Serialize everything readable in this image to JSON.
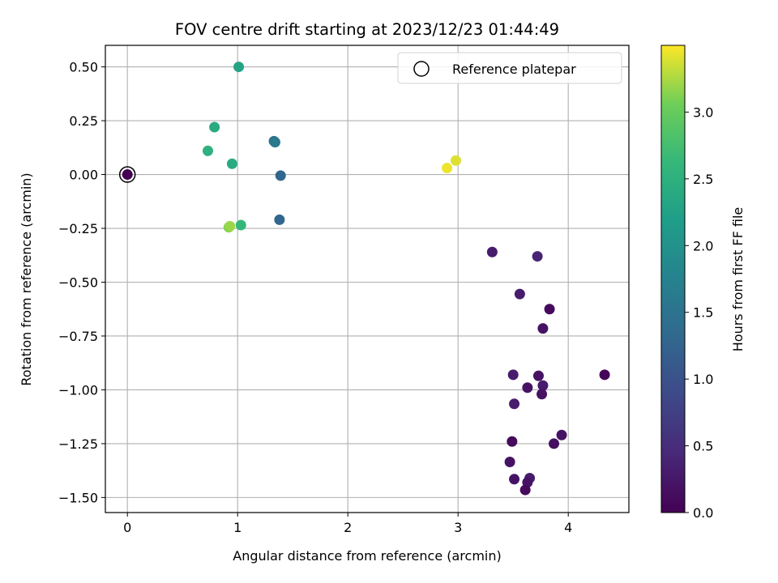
{
  "chart_data": {
    "type": "scatter",
    "title": "FOV centre drift starting at 2023/12/23 01:44:49",
    "xlabel": "Angular distance from reference (arcmin)",
    "ylabel": "Rotation from reference (arcmin)",
    "xlim": [
      -0.2,
      4.55
    ],
    "ylim": [
      -1.57,
      0.6
    ],
    "x_ticks": [
      0,
      1,
      2,
      3,
      4
    ],
    "x_tick_labels": [
      "0",
      "1",
      "2",
      "3",
      "4"
    ],
    "y_ticks": [
      0.5,
      0.25,
      0.0,
      -0.25,
      -0.5,
      -0.75,
      -1.0,
      -1.25,
      -1.5
    ],
    "y_tick_labels": [
      "0.50",
      "0.25",
      "0.00",
      "−0.25",
      "−0.50",
      "−0.75",
      "−1.00",
      "−1.25",
      "−1.50"
    ],
    "grid": true,
    "colormap": "viridis",
    "colorbar": {
      "label": "Hours from first FF file",
      "range": [
        0.0,
        3.5
      ],
      "ticks": [
        0.0,
        0.5,
        1.0,
        1.5,
        2.0,
        2.5,
        3.0
      ],
      "tick_labels": [
        "0.0",
        "0.5",
        "1.0",
        "1.5",
        "2.0",
        "2.5",
        "3.0"
      ]
    },
    "legend": {
      "position": "top-right",
      "entries": [
        "Reference platepar"
      ]
    },
    "reference_point": {
      "x": 0.0,
      "y": 0.0
    },
    "points": [
      {
        "x": 0.0,
        "y": 0.0,
        "c": 0.0
      },
      {
        "x": 3.31,
        "y": -0.36,
        "c": 0.3
      },
      {
        "x": 3.72,
        "y": -0.38,
        "c": 0.4
      },
      {
        "x": 3.56,
        "y": -0.555,
        "c": 0.3
      },
      {
        "x": 3.83,
        "y": -0.625,
        "c": 0.1
      },
      {
        "x": 3.77,
        "y": -0.715,
        "c": 0.2
      },
      {
        "x": 3.5,
        "y": -0.93,
        "c": 0.3
      },
      {
        "x": 3.73,
        "y": -0.935,
        "c": 0.2
      },
      {
        "x": 4.33,
        "y": -0.93,
        "c": 0.05
      },
      {
        "x": 3.63,
        "y": -0.99,
        "c": 0.2
      },
      {
        "x": 3.77,
        "y": -0.98,
        "c": 0.3
      },
      {
        "x": 3.76,
        "y": -1.02,
        "c": 0.2
      },
      {
        "x": 3.51,
        "y": -1.065,
        "c": 0.3
      },
      {
        "x": 3.94,
        "y": -1.21,
        "c": 0.2
      },
      {
        "x": 3.87,
        "y": -1.25,
        "c": 0.15
      },
      {
        "x": 3.49,
        "y": -1.24,
        "c": 0.1
      },
      {
        "x": 3.47,
        "y": -1.335,
        "c": 0.2
      },
      {
        "x": 3.51,
        "y": -1.415,
        "c": 0.2
      },
      {
        "x": 3.65,
        "y": -1.41,
        "c": 0.3
      },
      {
        "x": 3.63,
        "y": -1.43,
        "c": 0.2
      },
      {
        "x": 3.61,
        "y": -1.465,
        "c": 0.1
      },
      {
        "x": 1.39,
        "y": -0.005,
        "c": 1.3
      },
      {
        "x": 1.38,
        "y": -0.21,
        "c": 1.3
      },
      {
        "x": 1.33,
        "y": 0.155,
        "c": 1.4
      },
      {
        "x": 1.34,
        "y": 0.15,
        "c": 1.6
      },
      {
        "x": 1.01,
        "y": 0.5,
        "c": 2.3
      },
      {
        "x": 0.79,
        "y": 0.22,
        "c": 2.4
      },
      {
        "x": 0.73,
        "y": 0.11,
        "c": 2.5
      },
      {
        "x": 0.95,
        "y": 0.05,
        "c": 2.4
      },
      {
        "x": 1.03,
        "y": -0.235,
        "c": 2.6
      },
      {
        "x": 0.92,
        "y": -0.245,
        "c": 3.1
      },
      {
        "x": 0.93,
        "y": -0.24,
        "c": 3.2
      },
      {
        "x": 2.9,
        "y": 0.03,
        "c": 3.45
      },
      {
        "x": 2.98,
        "y": 0.065,
        "c": 3.4
      }
    ]
  }
}
